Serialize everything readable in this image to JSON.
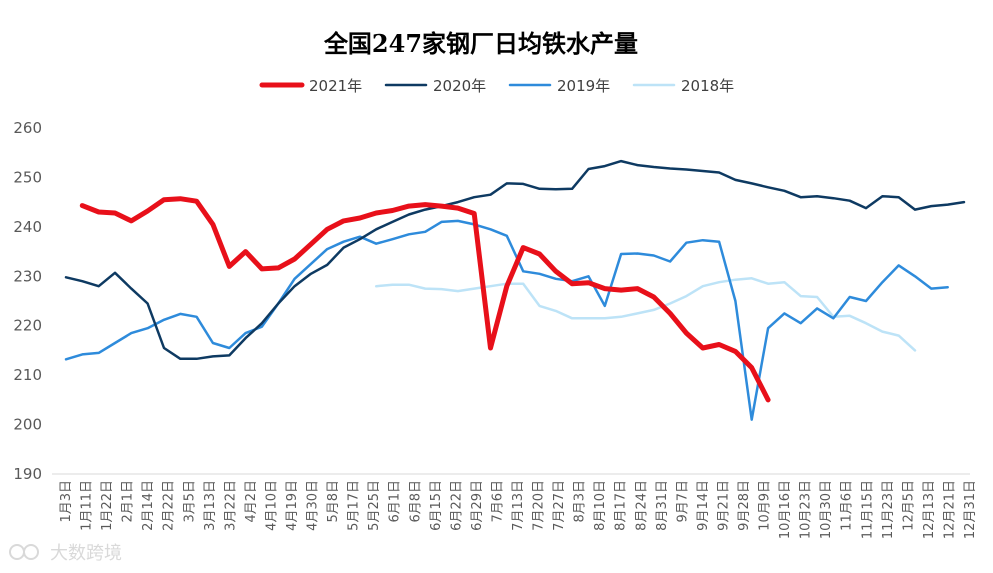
{
  "watermark": "大数跨境",
  "chart_data": {
    "type": "line",
    "title": "全国247家钢厂日均铁水产量",
    "xlabel": "",
    "ylabel": "",
    "ylim": [
      190,
      260
    ],
    "yticks": [
      190,
      200,
      210,
      220,
      230,
      240,
      250,
      260
    ],
    "grid": false,
    "legend_position": "top",
    "x_tick_labels": [
      "1月3日",
      "1月11日",
      "1月22日",
      "2月1日",
      "2月14日",
      "2月22日",
      "3月5日",
      "3月13日",
      "3月22日",
      "4月2日",
      "4月10日",
      "4月19日",
      "4月30日",
      "5月8日",
      "5月17日",
      "5月25日",
      "6月1日",
      "6月8日",
      "6月15日",
      "6月22日",
      "6月29日",
      "7月6日",
      "7月13日",
      "7月20日",
      "7月27日",
      "8月3日",
      "8月10日",
      "8月17日",
      "8月24日",
      "8月31日",
      "9月7日",
      "9月14日",
      "9月21日",
      "9月28日",
      "10月9日",
      "10月16日",
      "10月23日",
      "10月30日",
      "11月6日",
      "11月15日",
      "11月23日",
      "12月5日",
      "12月13日",
      "12月21日",
      "12月31日"
    ],
    "series": [
      {
        "name": "2021年",
        "color": "#e8101a",
        "width": 5,
        "points": [
          [
            1,
            244.3
          ],
          [
            2,
            243.0
          ],
          [
            3,
            242.8
          ],
          [
            4,
            241.2
          ],
          [
            5,
            243.2
          ],
          [
            6,
            245.5
          ],
          [
            7,
            245.7
          ],
          [
            8,
            245.2
          ],
          [
            9,
            240.5
          ],
          [
            10,
            232.0
          ],
          [
            11,
            235.0
          ],
          [
            12,
            231.5
          ],
          [
            13,
            231.7
          ],
          [
            14,
            233.5
          ],
          [
            15,
            236.5
          ],
          [
            16,
            239.5
          ],
          [
            17,
            241.2
          ],
          [
            18,
            241.8
          ],
          [
            19,
            242.8
          ],
          [
            20,
            243.3
          ],
          [
            21,
            244.2
          ],
          [
            22,
            244.5
          ],
          [
            23,
            244.2
          ],
          [
            24,
            243.8
          ],
          [
            25,
            242.7
          ],
          [
            26,
            215.5
          ],
          [
            27,
            228.0
          ],
          [
            28,
            235.8
          ],
          [
            29,
            234.5
          ],
          [
            30,
            231.0
          ],
          [
            31,
            228.5
          ],
          [
            32,
            228.7
          ],
          [
            33,
            227.5
          ],
          [
            34,
            227.2
          ],
          [
            35,
            227.5
          ],
          [
            36,
            225.8
          ],
          [
            37,
            222.5
          ],
          [
            38,
            218.5
          ],
          [
            39,
            215.5
          ],
          [
            40,
            216.2
          ],
          [
            41,
            214.8
          ],
          [
            42,
            211.5
          ],
          [
            43,
            205.0
          ]
        ]
      },
      {
        "name": "2020年",
        "color": "#0e3a62",
        "width": 2.5,
        "points": [
          [
            0,
            229.8
          ],
          [
            1,
            229.0
          ],
          [
            2,
            228.0
          ],
          [
            3,
            230.7
          ],
          [
            4,
            227.5
          ],
          [
            5,
            224.5
          ],
          [
            6,
            215.5
          ],
          [
            7,
            213.3
          ],
          [
            8,
            213.3
          ],
          [
            9,
            213.8
          ],
          [
            10,
            214.0
          ],
          [
            11,
            217.5
          ],
          [
            12,
            220.5
          ],
          [
            13,
            224.5
          ],
          [
            14,
            228.0
          ],
          [
            15,
            230.5
          ],
          [
            16,
            232.3
          ],
          [
            17,
            235.8
          ],
          [
            18,
            237.5
          ],
          [
            19,
            239.5
          ],
          [
            20,
            241.0
          ],
          [
            21,
            242.5
          ],
          [
            22,
            243.5
          ],
          [
            23,
            244.2
          ],
          [
            24,
            245.0
          ],
          [
            25,
            246.0
          ],
          [
            26,
            246.5
          ],
          [
            27,
            248.8
          ],
          [
            28,
            248.7
          ],
          [
            29,
            247.7
          ],
          [
            30,
            247.6
          ],
          [
            31,
            247.7
          ],
          [
            32,
            251.7
          ],
          [
            33,
            252.3
          ],
          [
            34,
            253.3
          ],
          [
            35,
            252.5
          ],
          [
            36,
            252.1
          ],
          [
            37,
            251.8
          ],
          [
            38,
            251.6
          ],
          [
            39,
            251.3
          ],
          [
            40,
            251.0
          ],
          [
            41,
            249.5
          ],
          [
            42,
            248.8
          ],
          [
            43,
            248.0
          ],
          [
            44,
            247.3
          ],
          [
            45,
            246.0
          ],
          [
            46,
            246.2
          ],
          [
            47,
            245.8
          ],
          [
            48,
            245.3
          ],
          [
            49,
            243.8
          ],
          [
            50,
            246.2
          ],
          [
            51,
            246.0
          ],
          [
            52,
            243.5
          ],
          [
            53,
            244.2
          ],
          [
            54,
            244.5
          ],
          [
            55,
            245.0
          ]
        ]
      },
      {
        "name": "2019年",
        "color": "#2e8bdb",
        "width": 2.5,
        "points": [
          [
            0,
            213.2
          ],
          [
            1,
            214.2
          ],
          [
            2,
            214.5
          ],
          [
            3,
            216.5
          ],
          [
            4,
            218.5
          ],
          [
            5,
            219.5
          ],
          [
            6,
            221.2
          ],
          [
            7,
            222.4
          ],
          [
            8,
            221.8
          ],
          [
            9,
            216.5
          ],
          [
            10,
            215.5
          ],
          [
            11,
            218.5
          ],
          [
            12,
            219.8
          ],
          [
            13,
            224.5
          ],
          [
            14,
            229.5
          ],
          [
            15,
            232.5
          ],
          [
            16,
            235.5
          ],
          [
            17,
            237.0
          ],
          [
            18,
            238.0
          ],
          [
            19,
            236.6
          ],
          [
            20,
            237.5
          ],
          [
            21,
            238.5
          ],
          [
            22,
            239.0
          ],
          [
            23,
            241.0
          ],
          [
            24,
            241.2
          ],
          [
            25,
            240.5
          ],
          [
            26,
            239.5
          ],
          [
            27,
            238.2
          ],
          [
            28,
            231.0
          ],
          [
            29,
            230.5
          ],
          [
            30,
            229.5
          ],
          [
            31,
            229.0
          ],
          [
            32,
            230.0
          ],
          [
            33,
            224.0
          ],
          [
            34,
            234.5
          ],
          [
            35,
            234.6
          ],
          [
            36,
            234.2
          ],
          [
            37,
            233.0
          ],
          [
            38,
            236.8
          ],
          [
            39,
            237.3
          ],
          [
            40,
            237.0
          ],
          [
            41,
            225.0
          ],
          [
            42,
            201.0
          ],
          [
            43,
            219.5
          ],
          [
            44,
            222.5
          ],
          [
            45,
            220.5
          ],
          [
            46,
            223.5
          ],
          [
            47,
            221.5
          ],
          [
            48,
            225.8
          ],
          [
            49,
            225.0
          ],
          [
            50,
            228.8
          ],
          [
            51,
            232.2
          ],
          [
            52,
            230.0
          ],
          [
            53,
            227.5
          ],
          [
            54,
            227.8
          ]
        ]
      },
      {
        "name": "2018年",
        "color": "#bde3f7",
        "width": 2.5,
        "points": [
          [
            19,
            228.0
          ],
          [
            20,
            228.3
          ],
          [
            21,
            228.3
          ],
          [
            22,
            227.5
          ],
          [
            23,
            227.4
          ],
          [
            24,
            227.0
          ],
          [
            25,
            227.5
          ],
          [
            26,
            228.0
          ],
          [
            27,
            228.5
          ],
          [
            28,
            228.5
          ],
          [
            29,
            224.0
          ],
          [
            30,
            223.0
          ],
          [
            31,
            221.5
          ],
          [
            32,
            221.5
          ],
          [
            33,
            221.5
          ],
          [
            34,
            221.8
          ],
          [
            35,
            222.5
          ],
          [
            36,
            223.2
          ],
          [
            37,
            224.5
          ],
          [
            38,
            226.0
          ],
          [
            39,
            228.0
          ],
          [
            40,
            228.8
          ],
          [
            41,
            229.3
          ],
          [
            42,
            229.6
          ],
          [
            43,
            228.5
          ],
          [
            44,
            228.8
          ],
          [
            45,
            226.0
          ],
          [
            46,
            225.8
          ],
          [
            47,
            221.8
          ],
          [
            48,
            222.0
          ],
          [
            49,
            220.5
          ],
          [
            50,
            218.8
          ],
          [
            51,
            218.0
          ],
          [
            52,
            215.0
          ]
        ]
      }
    ]
  }
}
